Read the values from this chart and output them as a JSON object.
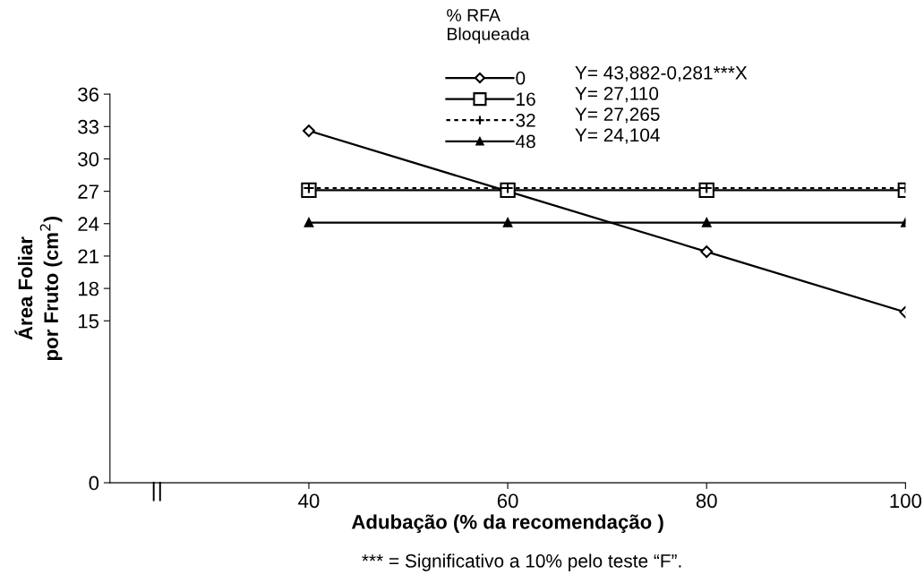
{
  "chart_data": {
    "type": "line",
    "xlabel": "Adubação (% da recomendação )",
    "ylabel": "Área Foliar\npor Fruto (cm$^{2}$)",
    "legend_title": "% RFA\nBloqueada",
    "x": [
      40,
      60,
      80,
      100
    ],
    "xlim": [
      20,
      100
    ],
    "xticks": [
      40,
      60,
      80,
      100
    ],
    "ylim": [
      0,
      36
    ],
    "yticks": [
      0,
      15,
      18,
      21,
      24,
      27,
      30,
      33,
      36
    ],
    "series": [
      {
        "name": "0",
        "color": "#000000",
        "marker": "diamond",
        "line_style": "solid",
        "values": [
          32.6,
          27.0,
          21.4,
          15.8
        ]
      },
      {
        "name": "16",
        "color": "#000000",
        "marker": "square",
        "line_style": "solid",
        "values": [
          27.1,
          27.1,
          27.1,
          27.1
        ]
      },
      {
        "name": "32",
        "color": "#000000",
        "marker": "cross",
        "line_style": "dotted",
        "values": [
          27.3,
          27.3,
          27.3,
          27.3
        ]
      },
      {
        "name": "48",
        "color": "#000000",
        "marker": "triangle",
        "line_style": "solid",
        "values": [
          24.1,
          24.1,
          24.1,
          24.1
        ]
      }
    ],
    "annotations": [
      "Y= 43,882-0,281***X",
      "Y= 27,110",
      "Y= 27,265",
      "Y= 24,104",
      "*** = Significativo a 10% pelo teste “F”."
    ],
    "legend": "top",
    "grid": false
  }
}
